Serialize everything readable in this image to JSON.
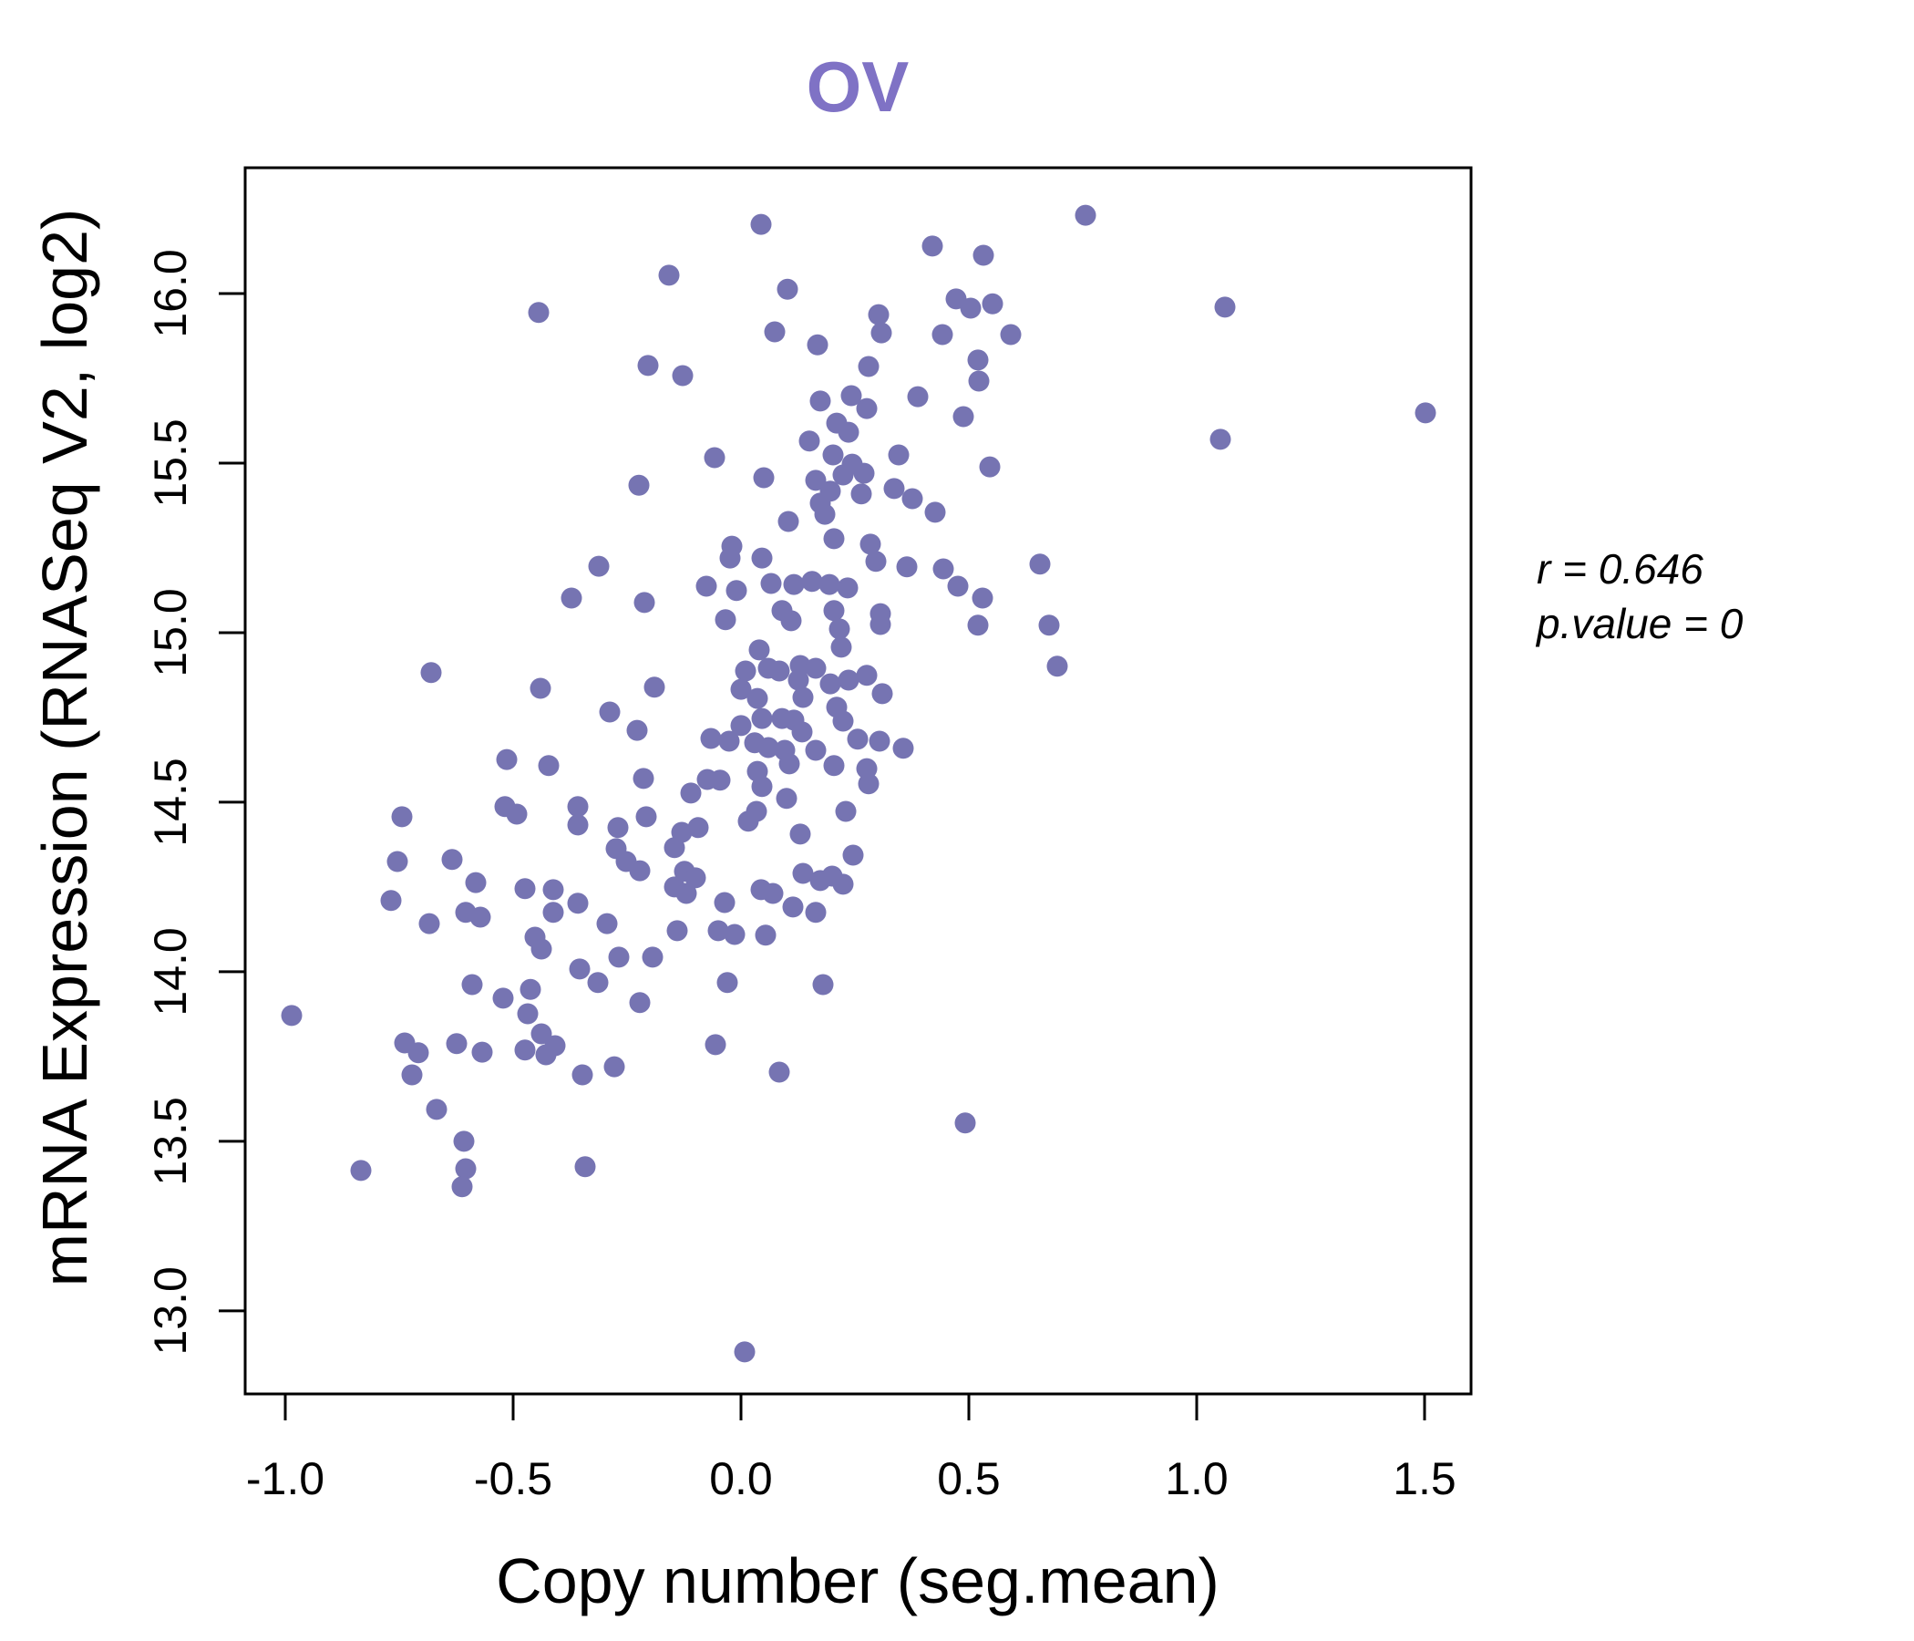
{
  "title": {
    "text": "OV"
  },
  "annotation": {
    "line1": "r = 0.646",
    "line2": "p.value = 0"
  },
  "colors": {
    "title": "#7f72c5",
    "point": "#7674b2",
    "axis": "#000000",
    "background": "#ffffff"
  },
  "chart_data": {
    "type": "scatter",
    "title": "OV",
    "xlabel": "Copy number (seg.mean)",
    "ylabel": "mRNA Expression (RNASeq V2, log2)",
    "xlim": [
      -1.088,
      1.602
    ],
    "ylim": [
      12.755,
      16.371
    ],
    "x_ticks": [
      -1.0,
      -0.5,
      0.0,
      0.5,
      1.0,
      1.5
    ],
    "x_tick_labels": [
      "-1.0",
      "-0.5",
      "0.0",
      "0.5",
      "1.0",
      "1.5"
    ],
    "y_ticks": [
      13.0,
      13.5,
      14.0,
      14.5,
      15.0,
      15.5,
      16.0
    ],
    "y_tick_labels": [
      "13.0",
      "13.5",
      "14.0",
      "14.5",
      "15.0",
      "15.5",
      "16.0"
    ],
    "grid": false,
    "legend": "none",
    "stats": {
      "r": 0.646,
      "p_value": 0
    },
    "points": [
      [
        -0.444,
        15.944
      ],
      [
        -0.204,
        15.788
      ],
      [
        -0.224,
        15.435
      ],
      [
        -0.312,
        15.196
      ],
      [
        0.044,
        16.204
      ],
      [
        0.42,
        16.14
      ],
      [
        0.532,
        16.113
      ],
      [
        -0.158,
        16.054
      ],
      [
        0.102,
        16.013
      ],
      [
        0.302,
        15.938
      ],
      [
        0.472,
        15.984
      ],
      [
        0.504,
        15.957
      ],
      [
        0.552,
        15.97
      ],
      [
        0.308,
        15.884
      ],
      [
        0.442,
        15.879
      ],
      [
        0.592,
        15.879
      ],
      [
        0.074,
        15.887
      ],
      [
        0.168,
        15.849
      ],
      [
        0.52,
        15.804
      ],
      [
        0.28,
        15.785
      ],
      [
        0.522,
        15.742
      ],
      [
        -0.128,
        15.758
      ],
      [
        0.174,
        15.683
      ],
      [
        0.242,
        15.699
      ],
      [
        0.276,
        15.661
      ],
      [
        0.388,
        15.696
      ],
      [
        0.488,
        15.637
      ],
      [
        0.21,
        15.618
      ],
      [
        0.546,
        15.489
      ],
      [
        -0.058,
        15.516
      ],
      [
        0.05,
        15.457
      ],
      [
        0.346,
        15.524
      ],
      [
        0.15,
        15.565
      ],
      [
        0.202,
        15.524
      ],
      [
        0.236,
        15.591
      ],
      [
        0.244,
        15.497
      ],
      [
        0.27,
        15.47
      ],
      [
        0.164,
        15.449
      ],
      [
        0.224,
        15.465
      ],
      [
        0.196,
        15.417
      ],
      [
        0.264,
        15.409
      ],
      [
        0.336,
        15.425
      ],
      [
        0.376,
        15.395
      ],
      [
        0.174,
        15.382
      ],
      [
        0.426,
        15.355
      ],
      [
        0.104,
        15.328
      ],
      [
        0.184,
        15.349
      ],
      [
        0.204,
        15.277
      ],
      [
        -0.02,
        15.255
      ],
      [
        -0.024,
        15.22
      ],
      [
        0.046,
        15.22
      ],
      [
        0.284,
        15.261
      ],
      [
        0.296,
        15.21
      ],
      [
        0.364,
        15.194
      ],
      [
        0.444,
        15.188
      ],
      [
        0.656,
        15.202
      ],
      [
        0.756,
        16.231
      ],
      [
        1.062,
        15.96
      ],
      [
        1.502,
        15.648
      ],
      [
        1.052,
        15.57
      ],
      [
        -0.372,
        15.102
      ],
      [
        -0.212,
        15.089
      ],
      [
        -0.68,
        14.882
      ],
      [
        -0.44,
        14.836
      ],
      [
        -0.288,
        14.766
      ],
      [
        -0.228,
        14.712
      ],
      [
        -0.514,
        14.626
      ],
      [
        -0.422,
        14.608
      ],
      [
        -0.214,
        14.57
      ],
      [
        -0.518,
        14.487
      ],
      [
        -0.492,
        14.465
      ],
      [
        -0.358,
        14.487
      ],
      [
        -0.358,
        14.433
      ],
      [
        -0.27,
        14.425
      ],
      [
        -0.208,
        14.457
      ],
      [
        -0.744,
        14.457
      ],
      [
        -0.274,
        14.363
      ],
      [
        -0.252,
        14.325
      ],
      [
        -0.222,
        14.298
      ],
      [
        -0.754,
        14.325
      ],
      [
        -0.634,
        14.331
      ],
      [
        -0.582,
        14.263
      ],
      [
        -0.474,
        14.245
      ],
      [
        -0.412,
        14.242
      ],
      [
        -0.768,
        14.21
      ],
      [
        -0.412,
        14.175
      ],
      [
        -0.358,
        14.202
      ],
      [
        -0.684,
        14.142
      ],
      [
        -0.604,
        14.175
      ],
      [
        -0.572,
        14.161
      ],
      [
        -0.294,
        14.142
      ],
      [
        -0.452,
        14.102
      ],
      [
        -0.438,
        14.067
      ],
      [
        -0.268,
        14.043
      ],
      [
        -0.354,
        14.008
      ],
      [
        -0.314,
        13.968
      ],
      [
        -0.59,
        13.962
      ],
      [
        -0.462,
        13.948
      ],
      [
        -0.076,
        15.137
      ],
      [
        -0.01,
        15.124
      ],
      [
        0.066,
        15.145
      ],
      [
        0.116,
        15.142
      ],
      [
        0.156,
        15.151
      ],
      [
        0.194,
        15.142
      ],
      [
        0.234,
        15.132
      ],
      [
        0.306,
        15.056
      ],
      [
        0.476,
        15.137
      ],
      [
        0.53,
        15.102
      ],
      [
        0.52,
        15.022
      ],
      [
        0.676,
        15.022
      ],
      [
        0.694,
        14.901
      ],
      [
        -0.034,
        15.038
      ],
      [
        0.04,
        14.949
      ],
      [
        0.09,
        15.065
      ],
      [
        0.11,
        15.035
      ],
      [
        0.204,
        15.065
      ],
      [
        0.216,
        15.011
      ],
      [
        0.22,
        14.957
      ],
      [
        0.306,
        15.024
      ],
      [
        0.01,
        14.887
      ],
      [
        0.06,
        14.895
      ],
      [
        0.084,
        14.887
      ],
      [
        0.13,
        14.903
      ],
      [
        0.164,
        14.895
      ],
      [
        0.0,
        14.833
      ],
      [
        0.036,
        14.806
      ],
      [
        0.126,
        14.86
      ],
      [
        0.136,
        14.809
      ],
      [
        0.196,
        14.849
      ],
      [
        0.236,
        14.86
      ],
      [
        0.276,
        14.874
      ],
      [
        0.31,
        14.82
      ],
      [
        0.21,
        14.78
      ],
      [
        0.224,
        14.739
      ],
      [
        0.046,
        14.747
      ],
      [
        0.09,
        14.747
      ],
      [
        0.116,
        14.742
      ],
      [
        0.0,
        14.726
      ],
      [
        -0.066,
        14.688
      ],
      [
        -0.026,
        14.68
      ],
      [
        0.03,
        14.675
      ],
      [
        0.06,
        14.661
      ],
      [
        0.096,
        14.653
      ],
      [
        0.134,
        14.707
      ],
      [
        0.164,
        14.653
      ],
      [
        0.106,
        14.613
      ],
      [
        0.204,
        14.608
      ],
      [
        0.256,
        14.686
      ],
      [
        0.304,
        14.68
      ],
      [
        0.356,
        14.659
      ],
      [
        0.276,
        14.599
      ],
      [
        0.28,
        14.554
      ],
      [
        0.036,
        14.591
      ],
      [
        0.046,
        14.546
      ],
      [
        -0.074,
        14.567
      ],
      [
        -0.046,
        14.565
      ],
      [
        -0.11,
        14.527
      ],
      [
        0.1,
        14.511
      ],
      [
        0.23,
        14.473
      ],
      [
        0.016,
        14.444
      ],
      [
        0.034,
        14.473
      ],
      [
        0.13,
        14.406
      ],
      [
        -0.094,
        14.425
      ],
      [
        -0.13,
        14.411
      ],
      [
        -0.146,
        14.366
      ],
      [
        0.246,
        14.344
      ],
      [
        0.136,
        14.29
      ],
      [
        0.174,
        14.269
      ],
      [
        0.2,
        14.282
      ],
      [
        0.224,
        14.258
      ],
      [
        -0.124,
        14.296
      ],
      [
        -0.1,
        14.277
      ],
      [
        -0.146,
        14.25
      ],
      [
        -0.12,
        14.231
      ],
      [
        -0.036,
        14.204
      ],
      [
        0.044,
        14.242
      ],
      [
        0.07,
        14.231
      ],
      [
        0.114,
        14.191
      ],
      [
        0.164,
        14.175
      ],
      [
        -0.14,
        14.121
      ],
      [
        -0.05,
        14.121
      ],
      [
        -0.014,
        14.11
      ],
      [
        0.054,
        14.108
      ],
      [
        -0.03,
        13.968
      ],
      [
        0.18,
        13.962
      ],
      [
        -0.19,
        14.839
      ],
      [
        -0.194,
        14.043
      ],
      [
        -0.522,
        13.922
      ],
      [
        -0.468,
        13.876
      ],
      [
        -0.222,
        13.909
      ],
      [
        -0.986,
        13.871
      ],
      [
        -0.738,
        13.79
      ],
      [
        -0.708,
        13.761
      ],
      [
        -0.722,
        13.696
      ],
      [
        -0.624,
        13.788
      ],
      [
        -0.568,
        13.763
      ],
      [
        -0.474,
        13.769
      ],
      [
        -0.438,
        13.817
      ],
      [
        -0.428,
        13.755
      ],
      [
        -0.408,
        13.782
      ],
      [
        -0.348,
        13.696
      ],
      [
        -0.278,
        13.72
      ],
      [
        -0.668,
        13.594
      ],
      [
        -0.608,
        13.5
      ],
      [
        -0.834,
        13.414
      ],
      [
        -0.604,
        13.419
      ],
      [
        -0.612,
        13.366
      ],
      [
        -0.342,
        13.425
      ],
      [
        -0.056,
        13.785
      ],
      [
        0.084,
        13.704
      ],
      [
        0.492,
        13.554
      ],
      [
        0.008,
        12.879
      ]
    ]
  }
}
